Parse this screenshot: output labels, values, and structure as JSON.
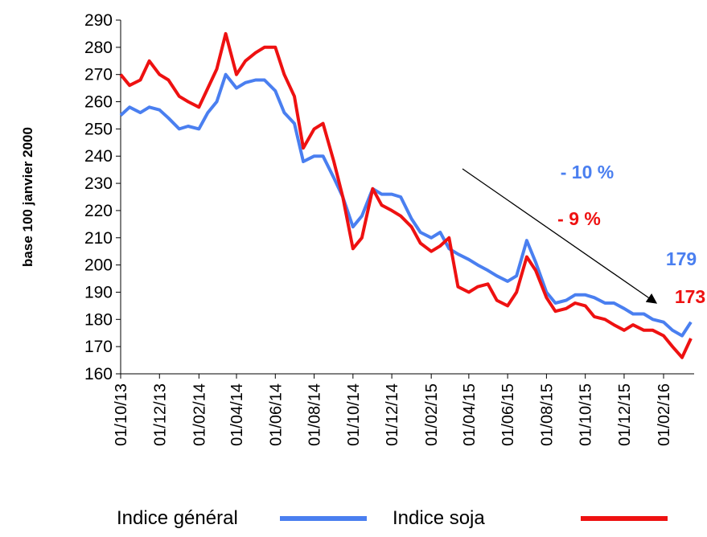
{
  "chart_data": {
    "type": "line",
    "y_label": "base 100 janvier 2000",
    "x": [
      "2013-10-01",
      "2013-10-15",
      "2013-11-01",
      "2013-11-15",
      "2013-12-01",
      "2013-12-15",
      "2014-01-01",
      "2014-01-15",
      "2014-02-01",
      "2014-02-15",
      "2014-03-01",
      "2014-03-15",
      "2014-04-01",
      "2014-04-15",
      "2014-05-01",
      "2014-05-15",
      "2014-06-01",
      "2014-06-15",
      "2014-07-01",
      "2014-07-15",
      "2014-08-01",
      "2014-08-15",
      "2014-09-01",
      "2014-09-15",
      "2014-10-01",
      "2014-10-15",
      "2014-11-01",
      "2014-11-15",
      "2014-12-01",
      "2014-12-15",
      "2015-01-01",
      "2015-01-15",
      "2015-02-01",
      "2015-02-15",
      "2015-03-01",
      "2015-03-15",
      "2015-04-01",
      "2015-04-15",
      "2015-05-01",
      "2015-05-15",
      "2015-06-01",
      "2015-06-15",
      "2015-07-01",
      "2015-07-15",
      "2015-08-01",
      "2015-08-15",
      "2015-09-01",
      "2015-09-15",
      "2015-10-01",
      "2015-10-15",
      "2015-11-01",
      "2015-11-15",
      "2015-12-01",
      "2015-12-15",
      "2016-01-01",
      "2016-01-15",
      "2016-02-01",
      "2016-02-15",
      "2016-03-01",
      "2016-03-15"
    ],
    "series": [
      {
        "name": "Indice général",
        "color": "#4a7ff0",
        "values": [
          255,
          258,
          256,
          258,
          257,
          254,
          250,
          251,
          250,
          256,
          260,
          270,
          265,
          267,
          268,
          268,
          264,
          256,
          252,
          238,
          240,
          240,
          232,
          225,
          214,
          218,
          228,
          226,
          226,
          225,
          217,
          212,
          210,
          212,
          206,
          204,
          202,
          200,
          198,
          196,
          194,
          196,
          209,
          201,
          190,
          186,
          187,
          189,
          189,
          188,
          186,
          186,
          184,
          182,
          182,
          180,
          179,
          176,
          174,
          179
        ]
      },
      {
        "name": "Indice soja",
        "color": "#ee1111",
        "values": [
          270,
          266,
          268,
          275,
          270,
          268,
          262,
          260,
          258,
          265,
          272,
          285,
          270,
          275,
          278,
          280,
          280,
          270,
          262,
          243,
          250,
          252,
          238,
          225,
          206,
          210,
          228,
          222,
          220,
          218,
          214,
          208,
          205,
          207,
          210,
          192,
          190,
          192,
          193,
          187,
          185,
          190,
          203,
          198,
          188,
          183,
          184,
          186,
          185,
          181,
          180,
          178,
          176,
          178,
          176,
          176,
          174,
          170,
          166,
          173
        ]
      }
    ],
    "xlim": [
      "2013-10-01",
      "2016-03-20"
    ],
    "xticks": [
      {
        "value": "2013-10-01",
        "label": "01/10/13"
      },
      {
        "value": "2013-12-01",
        "label": "01/12/13"
      },
      {
        "value": "2014-02-01",
        "label": "01/02/14"
      },
      {
        "value": "2014-04-01",
        "label": "01/04/14"
      },
      {
        "value": "2014-06-01",
        "label": "01/06/14"
      },
      {
        "value": "2014-08-01",
        "label": "01/08/14"
      },
      {
        "value": "2014-10-01",
        "label": "01/10/14"
      },
      {
        "value": "2014-12-01",
        "label": "01/12/14"
      },
      {
        "value": "2015-02-01",
        "label": "01/02/15"
      },
      {
        "value": "2015-04-01",
        "label": "01/04/15"
      },
      {
        "value": "2015-06-01",
        "label": "01/06/15"
      },
      {
        "value": "2015-08-01",
        "label": "01/08/15"
      },
      {
        "value": "2015-10-01",
        "label": "01/10/15"
      },
      {
        "value": "2015-12-01",
        "label": "01/12/15"
      },
      {
        "value": "2016-02-01",
        "label": "01/02/16"
      }
    ],
    "ylim": [
      160,
      290
    ],
    "yticks": [
      160,
      170,
      180,
      190,
      200,
      210,
      220,
      230,
      240,
      250,
      260,
      270,
      280,
      290
    ],
    "annotations": [
      {
        "text": "- 10 %",
        "color": "#4a7ff0"
      },
      {
        "text": "- 9 %",
        "color": "#ee1111"
      },
      {
        "text": "179",
        "color": "#4a7ff0"
      },
      {
        "text": "173",
        "color": "#ee1111"
      }
    ],
    "legend": "bottom"
  }
}
